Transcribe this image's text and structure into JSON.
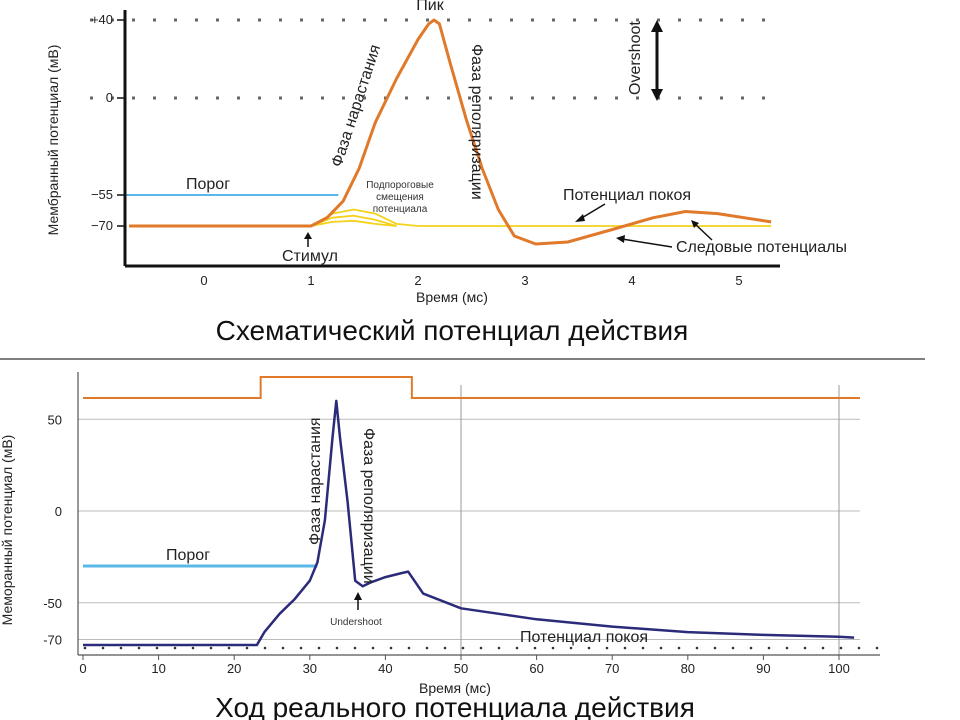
{
  "chart_data": [
    {
      "type": "line",
      "title": "Схематический потенциал действия",
      "xlabel": "Время (мс)",
      "ylabel": "Мембранный потенциал (мВ)",
      "x_ticks": [
        "0",
        "1",
        "2",
        "3",
        "4",
        "5"
      ],
      "y_ticks": [
        "+40",
        "0",
        "−55",
        "−70"
      ],
      "xlim": [
        -0.7,
        5.3
      ],
      "ylim": [
        -88,
        45
      ],
      "series": [
        {
          "color": "#e07a2a",
          "x": [
            -0.7,
            1.0,
            1.15,
            1.3,
            1.45,
            1.6,
            1.8,
            2.0,
            2.1,
            2.15,
            2.2,
            2.3,
            2.45,
            2.6,
            2.75,
            2.9,
            3.1,
            3.4,
            3.8,
            4.2,
            4.5,
            4.8,
            5.3
          ],
          "y": [
            -70,
            -70,
            -66,
            -58,
            -40,
            -14,
            10,
            30,
            38,
            40,
            38,
            18,
            -12,
            -40,
            -62,
            -75,
            -79,
            -78,
            -72,
            -66,
            -63,
            -64,
            -68
          ]
        },
        {
          "color": "#f3d21b",
          "x": [
            -0.7,
            1.0,
            1.2,
            1.4,
            1.6,
            1.8,
            2.0,
            5.3
          ],
          "y": [
            -70,
            -70,
            -64,
            -62,
            -64,
            -69,
            -70,
            -70
          ]
        },
        {
          "color": "#f3d21b",
          "x": [
            1.0,
            1.2,
            1.4,
            1.6,
            1.8
          ],
          "y": [
            -70,
            -66,
            -65,
            -67,
            -70
          ]
        },
        {
          "color": "#f3d21b",
          "x": [
            1.0,
            1.2,
            1.4,
            1.6,
            1.8
          ],
          "y": [
            -70,
            -68,
            -67.5,
            -69,
            -70
          ]
        }
      ],
      "threshold": {
        "label": "Порог",
        "y": -55,
        "x_end": 1.35,
        "color": "#5ab8e8"
      },
      "annotations": {
        "peak": "Пик",
        "rising": "Фаза нарастания",
        "repol": "Фаза реполяризации",
        "overshoot": "Overshoot",
        "subthreshold": [
          "Подпороговые",
          "смещения",
          "потенциала"
        ],
        "stimulus": "Стимул",
        "resting": "Потенциал покоя",
        "trace": "Следовые потенциалы"
      },
      "grid": "dotted at +40 and 0"
    },
    {
      "type": "line",
      "title": "Ход реального потенциала действия",
      "xlabel": "Время (мс)",
      "ylabel": "Меморанный потенциал (мВ)",
      "x_ticks": [
        "0",
        "10",
        "20",
        "30",
        "40",
        "50",
        "60",
        "70",
        "80",
        "90",
        "100"
      ],
      "y_ticks": [
        "50",
        "0",
        "-50",
        "-70"
      ],
      "xlim": [
        0,
        105
      ],
      "ylim": [
        -76,
        68
      ],
      "series": [
        {
          "color": "#2b2b7a",
          "x": [
            0,
            23,
            24,
            26,
            28,
            30,
            31,
            32,
            33,
            33.5,
            34,
            35,
            36,
            37,
            38,
            40,
            42,
            43,
            45,
            50,
            55,
            60,
            70,
            80,
            90,
            100,
            102
          ],
          "y": [
            -73,
            -73,
            -66,
            -56,
            -48,
            -38,
            -28,
            -5,
            40,
            60,
            40,
            5,
            -38,
            -41,
            -39,
            -36,
            -34,
            -33,
            -45,
            -53,
            -56,
            -59,
            -63,
            -66,
            -67.5,
            -68.5,
            -69
          ]
        }
      ],
      "stimulus_trace": {
        "color": "#e07a2a",
        "x_on": 24,
        "x_off": 44,
        "low": 60,
        "high": 73
      },
      "threshold": {
        "label": "Порог",
        "y": -30,
        "x_start": 0,
        "x_end": 31,
        "color": "#5ab8e8"
      },
      "annotations": {
        "rising": "Фаза нарастания",
        "repol": "Фаза реполяризации",
        "undershoot": "Undershoot",
        "resting": "Потенциал покоя"
      },
      "grid": "horizontal at 50, 0, -50, -70; vertical at 50, 100"
    }
  ]
}
